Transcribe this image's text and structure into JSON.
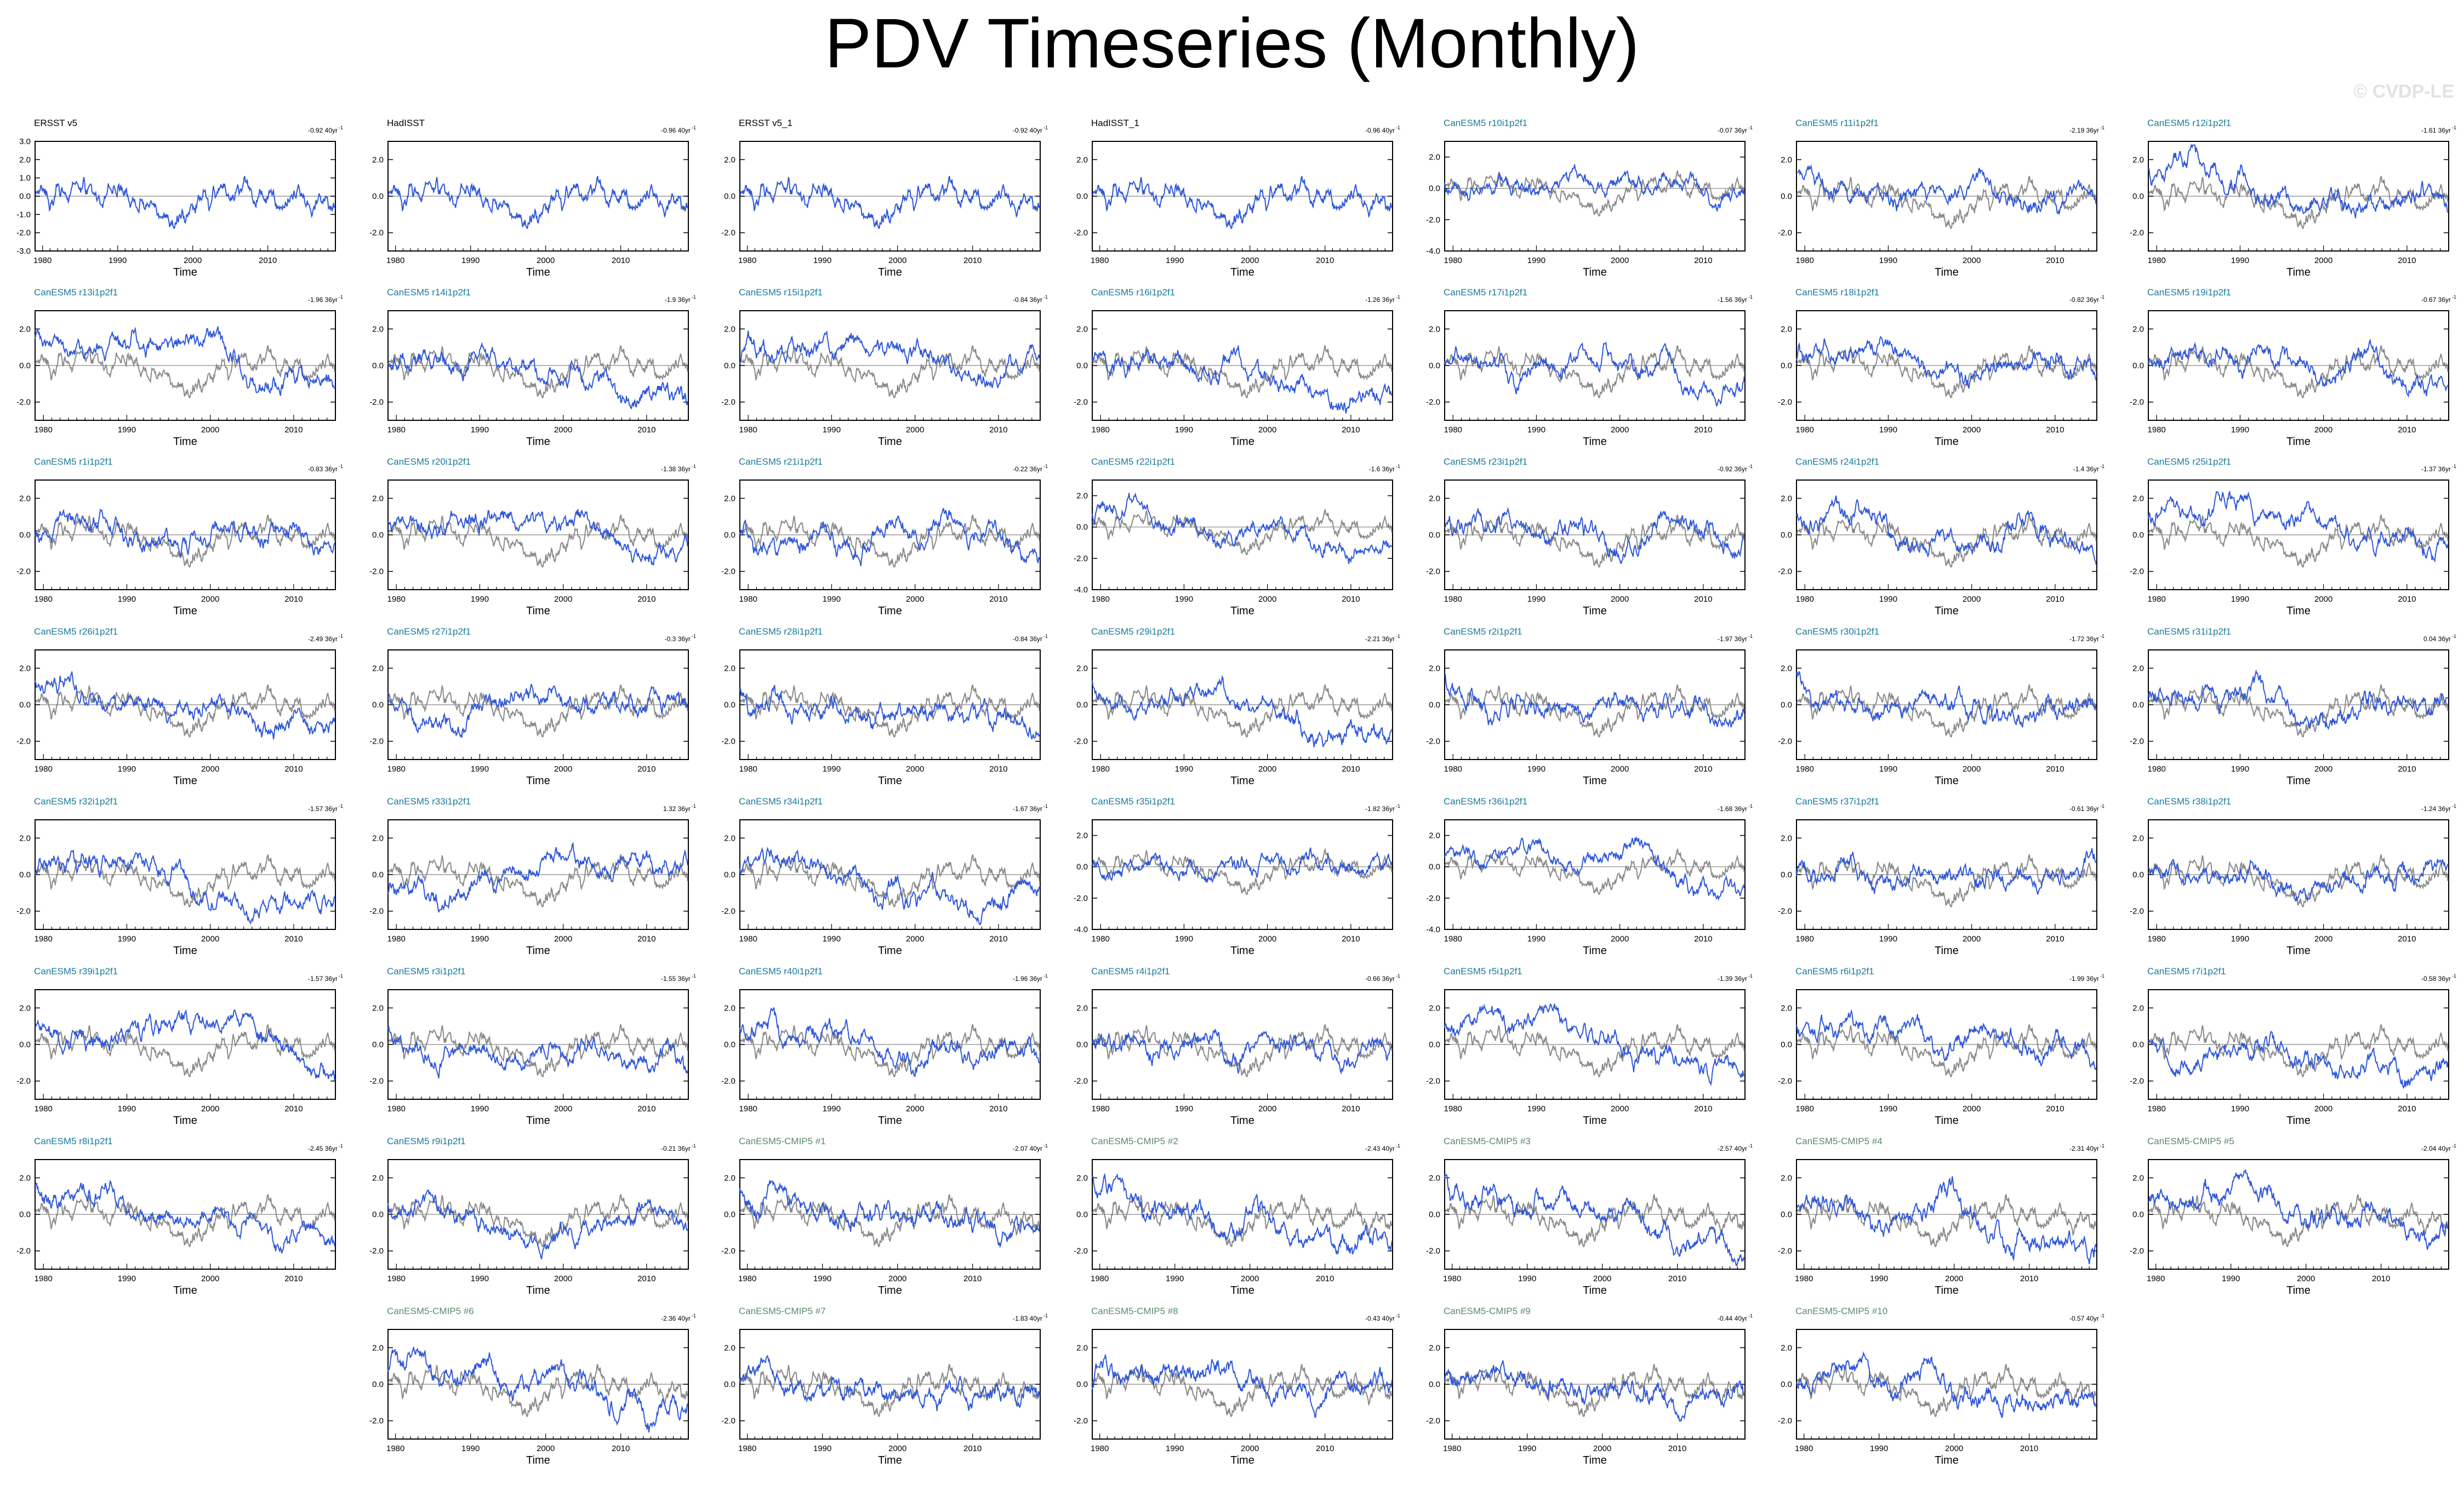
{
  "page": {
    "title": "PDV Timeseries (Monthly)",
    "watermark": "© CVDP-LE"
  },
  "colors": {
    "primary_series": "#3058d8",
    "observed_overlay": "#8a8a8a",
    "label_observed": "#000000",
    "label_member": "#1a7a9a",
    "label_cmip5": "#5a8a6a"
  },
  "chart_data": {
    "type": "line",
    "xlabel": "Time",
    "x_tick_labels": [
      "1980",
      "1990",
      "2000",
      "2010"
    ],
    "panels": [
      {
        "title": "ERSST v5",
        "trend": "-0.92 40yr",
        "kind": "observed",
        "xlim": [
          1979,
          2019
        ],
        "ylim": [
          -3.0,
          3.0
        ],
        "yticks": [
          "3.0",
          "2.0",
          "1.0",
          "0.0",
          "-1.0",
          "-2.0",
          "-3.0"
        ]
      },
      {
        "title": "HadISST",
        "trend": "-0.96 40yr",
        "kind": "observed",
        "xlim": [
          1979,
          2019
        ],
        "ylim": [
          -3.0,
          3.0
        ],
        "yticks": [
          "2.0",
          "0.0",
          "-2.0"
        ]
      },
      {
        "title": "ERSST v5_1",
        "trend": "-0.92 40yr",
        "kind": "observed",
        "xlim": [
          1979,
          2019
        ],
        "ylim": [
          -3.0,
          3.0
        ],
        "yticks": [
          "2.0",
          "0.0",
          "-2.0"
        ]
      },
      {
        "title": "HadISST_1",
        "trend": "-0.96 40yr",
        "kind": "observed",
        "xlim": [
          1979,
          2019
        ],
        "ylim": [
          -3.0,
          3.0
        ],
        "yticks": [
          "2.0",
          "0.0",
          "-2.0"
        ]
      },
      {
        "title": "CanESM5 r10i1p2f1",
        "trend": "-0.07 36yr",
        "kind": "member",
        "xlim": [
          1979,
          2015
        ],
        "ylim": [
          -4.0,
          3.0
        ],
        "yticks": [
          "2.0",
          "0.0",
          "-2.0",
          "-4.0"
        ]
      },
      {
        "title": "CanESM5 r11i1p2f1",
        "trend": "-2.19 36yr",
        "kind": "member",
        "xlim": [
          1979,
          2015
        ],
        "ylim": [
          -3.0,
          3.0
        ],
        "yticks": [
          "2.0",
          "0.0",
          "-2.0"
        ]
      },
      {
        "title": "CanESM5 r12i1p2f1",
        "trend": "-1.61 36yr",
        "kind": "member",
        "xlim": [
          1979,
          2015
        ],
        "ylim": [
          -3.0,
          3.0
        ],
        "yticks": [
          "2.0",
          "0.0",
          "-2.0"
        ]
      },
      {
        "title": "CanESM5 r13i1p2f1",
        "trend": "-1.96 36yr",
        "kind": "member",
        "xlim": [
          1979,
          2015
        ],
        "ylim": [
          -3.0,
          3.0
        ],
        "yticks": [
          "2.0",
          "0.0",
          "-2.0"
        ]
      },
      {
        "title": "CanESM5 r14i1p2f1",
        "trend": "-1.9 36yr",
        "kind": "member",
        "xlim": [
          1979,
          2015
        ],
        "ylim": [
          -3.0,
          3.0
        ],
        "yticks": [
          "2.0",
          "0.0",
          "-2.0"
        ]
      },
      {
        "title": "CanESM5 r15i1p2f1",
        "trend": "-0.84 36yr",
        "kind": "member",
        "xlim": [
          1979,
          2015
        ],
        "ylim": [
          -3.0,
          3.0
        ],
        "yticks": [
          "2.0",
          "0.0",
          "-2.0"
        ]
      },
      {
        "title": "CanESM5 r16i1p2f1",
        "trend": "-1.26 36yr",
        "kind": "member",
        "xlim": [
          1979,
          2015
        ],
        "ylim": [
          -3.0,
          3.0
        ],
        "yticks": [
          "2.0",
          "0.0",
          "-2.0"
        ]
      },
      {
        "title": "CanESM5 r17i1p2f1",
        "trend": "-1.56 36yr",
        "kind": "member",
        "xlim": [
          1979,
          2015
        ],
        "ylim": [
          -3.0,
          3.0
        ],
        "yticks": [
          "2.0",
          "0.0",
          "-2.0"
        ]
      },
      {
        "title": "CanESM5 r18i1p2f1",
        "trend": "-0.82 36yr",
        "kind": "member",
        "xlim": [
          1979,
          2015
        ],
        "ylim": [
          -3.0,
          3.0
        ],
        "yticks": [
          "2.0",
          "0.0",
          "-2.0"
        ]
      },
      {
        "title": "CanESM5 r19i1p2f1",
        "trend": "-0.67 36yr",
        "kind": "member",
        "xlim": [
          1979,
          2015
        ],
        "ylim": [
          -3.0,
          3.0
        ],
        "yticks": [
          "2.0",
          "0.0",
          "-2.0"
        ]
      },
      {
        "title": "CanESM5 r1i1p2f1",
        "trend": "-0.83 36yr",
        "kind": "member",
        "xlim": [
          1979,
          2015
        ],
        "ylim": [
          -3.0,
          3.0
        ],
        "yticks": [
          "2.0",
          "0.0",
          "-2.0"
        ]
      },
      {
        "title": "CanESM5 r20i1p2f1",
        "trend": "-1.38 36yr",
        "kind": "member",
        "xlim": [
          1979,
          2015
        ],
        "ylim": [
          -3.0,
          3.0
        ],
        "yticks": [
          "2.0",
          "0.0",
          "-2.0"
        ]
      },
      {
        "title": "CanESM5 r21i1p2f1",
        "trend": "-0.22 36yr",
        "kind": "member",
        "xlim": [
          1979,
          2015
        ],
        "ylim": [
          -3.0,
          3.0
        ],
        "yticks": [
          "2.0",
          "0.0",
          "-2.0"
        ]
      },
      {
        "title": "CanESM5 r22i1p2f1",
        "trend": "-1.6 36yr",
        "kind": "member",
        "xlim": [
          1979,
          2015
        ],
        "ylim": [
          -4.0,
          3.0
        ],
        "yticks": [
          "2.0",
          "0.0",
          "-2.0",
          "-4.0"
        ]
      },
      {
        "title": "CanESM5 r23i1p2f1",
        "trend": "-0.92 36yr",
        "kind": "member",
        "xlim": [
          1979,
          2015
        ],
        "ylim": [
          -3.0,
          3.0
        ],
        "yticks": [
          "2.0",
          "0.0",
          "-2.0"
        ]
      },
      {
        "title": "CanESM5 r24i1p2f1",
        "trend": "-1.4 36yr",
        "kind": "member",
        "xlim": [
          1979,
          2015
        ],
        "ylim": [
          -3.0,
          3.0
        ],
        "yticks": [
          "2.0",
          "0.0",
          "-2.0"
        ]
      },
      {
        "title": "CanESM5 r25i1p2f1",
        "trend": "-1.37 36yr",
        "kind": "member",
        "xlim": [
          1979,
          2015
        ],
        "ylim": [
          -3.0,
          3.0
        ],
        "yticks": [
          "2.0",
          "0.0",
          "-2.0"
        ]
      },
      {
        "title": "CanESM5 r26i1p2f1",
        "trend": "-2.49 36yr",
        "kind": "member",
        "xlim": [
          1979,
          2015
        ],
        "ylim": [
          -3.0,
          3.0
        ],
        "yticks": [
          "2.0",
          "0.0",
          "-2.0"
        ]
      },
      {
        "title": "CanESM5 r27i1p2f1",
        "trend": "-0.3 36yr",
        "kind": "member",
        "xlim": [
          1979,
          2015
        ],
        "ylim": [
          -3.0,
          3.0
        ],
        "yticks": [
          "2.0",
          "0.0",
          "-2.0"
        ]
      },
      {
        "title": "CanESM5 r28i1p2f1",
        "trend": "-0.84 36yr",
        "kind": "member",
        "xlim": [
          1979,
          2015
        ],
        "ylim": [
          -3.0,
          3.0
        ],
        "yticks": [
          "2.0",
          "0.0",
          "-2.0"
        ]
      },
      {
        "title": "CanESM5 r29i1p2f1",
        "trend": "-2.21 36yr",
        "kind": "member",
        "xlim": [
          1979,
          2015
        ],
        "ylim": [
          -3.0,
          3.0
        ],
        "yticks": [
          "2.0",
          "0.0",
          "-2.0"
        ]
      },
      {
        "title": "CanESM5 r2i1p2f1",
        "trend": "-1.97 36yr",
        "kind": "member",
        "xlim": [
          1979,
          2015
        ],
        "ylim": [
          -3.0,
          3.0
        ],
        "yticks": [
          "2.0",
          "0.0",
          "-2.0"
        ]
      },
      {
        "title": "CanESM5 r30i1p2f1",
        "trend": "-1.72 36yr",
        "kind": "member",
        "xlim": [
          1979,
          2015
        ],
        "ylim": [
          -3.0,
          3.0
        ],
        "yticks": [
          "2.0",
          "0.0",
          "-2.0"
        ]
      },
      {
        "title": "CanESM5 r31i1p2f1",
        "trend": "0.04 36yr",
        "kind": "member",
        "xlim": [
          1979,
          2015
        ],
        "ylim": [
          -3.0,
          3.0
        ],
        "yticks": [
          "2.0",
          "0.0",
          "-2.0"
        ]
      },
      {
        "title": "CanESM5 r32i1p2f1",
        "trend": "-1.57 36yr",
        "kind": "member",
        "xlim": [
          1979,
          2015
        ],
        "ylim": [
          -3.0,
          3.0
        ],
        "yticks": [
          "2.0",
          "0.0",
          "-2.0"
        ]
      },
      {
        "title": "CanESM5 r33i1p2f1",
        "trend": "1.32 36yr",
        "kind": "member",
        "xlim": [
          1979,
          2015
        ],
        "ylim": [
          -3.0,
          3.0
        ],
        "yticks": [
          "2.0",
          "0.0",
          "-2.0"
        ]
      },
      {
        "title": "CanESM5 r34i1p2f1",
        "trend": "-1.67 36yr",
        "kind": "member",
        "xlim": [
          1979,
          2015
        ],
        "ylim": [
          -3.0,
          3.0
        ],
        "yticks": [
          "2.0",
          "0.0",
          "-2.0"
        ]
      },
      {
        "title": "CanESM5 r35i1p2f1",
        "trend": "-1.82 36yr",
        "kind": "member",
        "xlim": [
          1979,
          2015
        ],
        "ylim": [
          -4.0,
          3.0
        ],
        "yticks": [
          "2.0",
          "0.0",
          "-2.0",
          "-4.0"
        ]
      },
      {
        "title": "CanESM5 r36i1p2f1",
        "trend": "-1.68 36yr",
        "kind": "member",
        "xlim": [
          1979,
          2015
        ],
        "ylim": [
          -4.0,
          3.0
        ],
        "yticks": [
          "2.0",
          "0.0",
          "-2.0",
          "-4.0"
        ]
      },
      {
        "title": "CanESM5 r37i1p2f1",
        "trend": "-0.61 36yr",
        "kind": "member",
        "xlim": [
          1979,
          2015
        ],
        "ylim": [
          -3.0,
          3.0
        ],
        "yticks": [
          "2.0",
          "0.0",
          "-2.0"
        ]
      },
      {
        "title": "CanESM5 r38i1p2f1",
        "trend": "-1.24 36yr",
        "kind": "member",
        "xlim": [
          1979,
          2015
        ],
        "ylim": [
          -3.0,
          3.0
        ],
        "yticks": [
          "2.0",
          "0.0",
          "-2.0"
        ]
      },
      {
        "title": "CanESM5 r39i1p2f1",
        "trend": "-1.57 36yr",
        "kind": "member",
        "xlim": [
          1979,
          2015
        ],
        "ylim": [
          -3.0,
          3.0
        ],
        "yticks": [
          "2.0",
          "0.0",
          "-2.0"
        ]
      },
      {
        "title": "CanESM5 r3i1p2f1",
        "trend": "-1.55 36yr",
        "kind": "member",
        "xlim": [
          1979,
          2015
        ],
        "ylim": [
          -3.0,
          3.0
        ],
        "yticks": [
          "2.0",
          "0.0",
          "-2.0"
        ]
      },
      {
        "title": "CanESM5 r40i1p2f1",
        "trend": "-1.96 36yr",
        "kind": "member",
        "xlim": [
          1979,
          2015
        ],
        "ylim": [
          -3.0,
          3.0
        ],
        "yticks": [
          "2.0",
          "0.0",
          "-2.0"
        ]
      },
      {
        "title": "CanESM5 r4i1p2f1",
        "trend": "-0.66 36yr",
        "kind": "member",
        "xlim": [
          1979,
          2015
        ],
        "ylim": [
          -3.0,
          3.0
        ],
        "yticks": [
          "2.0",
          "0.0",
          "-2.0"
        ]
      },
      {
        "title": "CanESM5 r5i1p2f1",
        "trend": "-1.39 36yr",
        "kind": "member",
        "xlim": [
          1979,
          2015
        ],
        "ylim": [
          -3.0,
          3.0
        ],
        "yticks": [
          "2.0",
          "0.0",
          "-2.0"
        ]
      },
      {
        "title": "CanESM5 r6i1p2f1",
        "trend": "-1.99 36yr",
        "kind": "member",
        "xlim": [
          1979,
          2015
        ],
        "ylim": [
          -3.0,
          3.0
        ],
        "yticks": [
          "2.0",
          "0.0",
          "-2.0"
        ]
      },
      {
        "title": "CanESM5 r7i1p2f1",
        "trend": "-0.58 36yr",
        "kind": "member",
        "xlim": [
          1979,
          2015
        ],
        "ylim": [
          -3.0,
          3.0
        ],
        "yticks": [
          "2.0",
          "0.0",
          "-2.0"
        ]
      },
      {
        "title": "CanESM5 r8i1p2f1",
        "trend": "-2.45 36yr",
        "kind": "member",
        "xlim": [
          1979,
          2015
        ],
        "ylim": [
          -3.0,
          3.0
        ],
        "yticks": [
          "2.0",
          "0.0",
          "-2.0"
        ]
      },
      {
        "title": "CanESM5 r9i1p2f1",
        "trend": "-0.21 36yr",
        "kind": "member",
        "xlim": [
          1979,
          2015
        ],
        "ylim": [
          -3.0,
          3.0
        ],
        "yticks": [
          "2.0",
          "0.0",
          "-2.0"
        ]
      },
      {
        "title": "CanESM5-CMIP5 #1",
        "trend": "-2.07 40yr",
        "kind": "cmip5",
        "xlim": [
          1979,
          2019
        ],
        "ylim": [
          -3.0,
          3.0
        ],
        "yticks": [
          "2.0",
          "0.0",
          "-2.0"
        ]
      },
      {
        "title": "CanESM5-CMIP5 #2",
        "trend": "-2.43 40yr",
        "kind": "cmip5",
        "xlim": [
          1979,
          2019
        ],
        "ylim": [
          -3.0,
          3.0
        ],
        "yticks": [
          "2.0",
          "0.0",
          "-2.0"
        ]
      },
      {
        "title": "CanESM5-CMIP5 #3",
        "trend": "-2.57 40yr",
        "kind": "cmip5",
        "xlim": [
          1979,
          2019
        ],
        "ylim": [
          -3.0,
          3.0
        ],
        "yticks": [
          "2.0",
          "0.0",
          "-2.0"
        ]
      },
      {
        "title": "CanESM5-CMIP5 #4",
        "trend": "-2.31 40yr",
        "kind": "cmip5",
        "xlim": [
          1979,
          2019
        ],
        "ylim": [
          -3.0,
          3.0
        ],
        "yticks": [
          "2.0",
          "0.0",
          "-2.0"
        ]
      },
      {
        "title": "CanESM5-CMIP5 #5",
        "trend": "-2.04 40yr",
        "kind": "cmip5",
        "xlim": [
          1979,
          2019
        ],
        "ylim": [
          -3.0,
          3.0
        ],
        "yticks": [
          "2.0",
          "0.0",
          "-2.0"
        ]
      },
      {
        "title": "CanESM5-CMIP5 #6",
        "trend": "-2.36 40yr",
        "kind": "cmip5",
        "xlim": [
          1979,
          2019
        ],
        "ylim": [
          -3.0,
          3.0
        ],
        "yticks": [
          "2.0",
          "0.0",
          "-2.0"
        ]
      },
      {
        "title": "CanESM5-CMIP5 #7",
        "trend": "-1.83 40yr",
        "kind": "cmip5",
        "xlim": [
          1979,
          2019
        ],
        "ylim": [
          -3.0,
          3.0
        ],
        "yticks": [
          "2.0",
          "0.0",
          "-2.0"
        ]
      },
      {
        "title": "CanESM5-CMIP5 #8",
        "trend": "-0.43 40yr",
        "kind": "cmip5",
        "xlim": [
          1979,
          2019
        ],
        "ylim": [
          -3.0,
          3.0
        ],
        "yticks": [
          "2.0",
          "0.0",
          "-2.0"
        ]
      },
      {
        "title": "CanESM5-CMIP5 #9",
        "trend": "-0.44 40yr",
        "kind": "cmip5",
        "xlim": [
          1979,
          2019
        ],
        "ylim": [
          -3.0,
          3.0
        ],
        "yticks": [
          "2.0",
          "0.0",
          "-2.0"
        ]
      },
      {
        "title": "CanESM5-CMIP5 #10",
        "trend": "-0.57 40yr",
        "kind": "cmip5",
        "xlim": [
          1979,
          2019
        ],
        "ylim": [
          -3.0,
          3.0
        ],
        "yticks": [
          "2.0",
          "0.0",
          "-2.0"
        ]
      }
    ]
  }
}
